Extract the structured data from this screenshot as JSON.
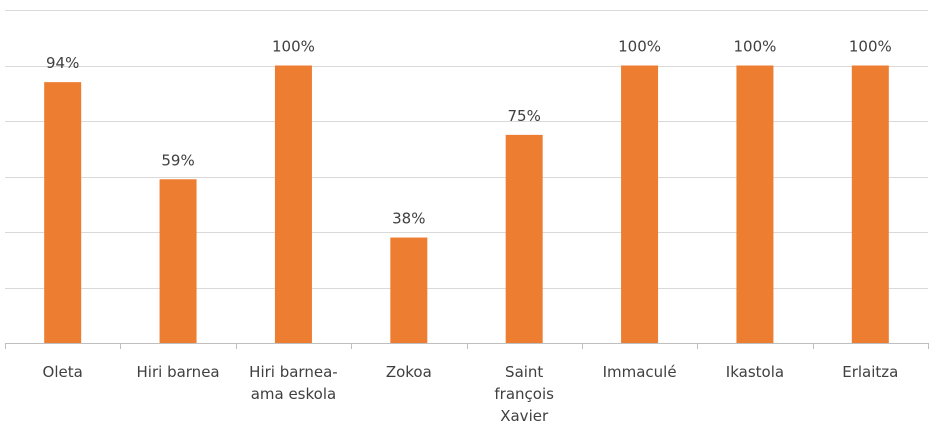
{
  "chart_data": {
    "type": "bar",
    "categories": [
      [
        "Oleta"
      ],
      [
        "Hiri barnea"
      ],
      [
        "Hiri barnea-",
        "ama eskola"
      ],
      [
        "Zokoa"
      ],
      [
        "Saint",
        "françois",
        "Xavier"
      ],
      [
        "Immaculé"
      ],
      [
        "Ikastola"
      ],
      [
        "Erlaitza"
      ]
    ],
    "values": [
      94,
      59,
      100,
      38,
      75,
      100,
      100,
      100
    ],
    "data_labels": [
      "94%",
      "59%",
      "100%",
      "38%",
      "75%",
      "100%",
      "100%",
      "100%"
    ],
    "ylim": [
      0,
      120
    ],
    "grid": true,
    "bar_color": "#ED7D31",
    "grid_color": "#D9D9D9",
    "axis_color": "#BFBFBF",
    "text_color": "#404040"
  }
}
